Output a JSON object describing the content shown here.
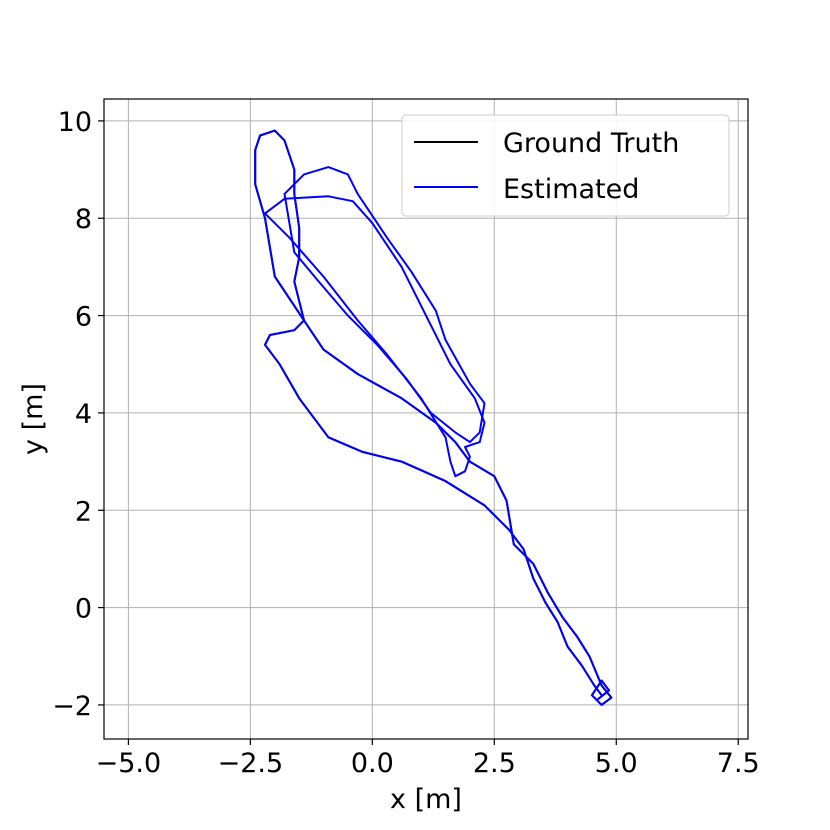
{
  "chart_data": {
    "type": "line",
    "title": "",
    "xlabel": "x [m]",
    "ylabel": "y [m]",
    "xlim": [
      -5.5,
      7.7
    ],
    "ylim": [
      -2.7,
      10.45
    ],
    "x_ticks": [
      -5.0,
      -2.5,
      0.0,
      2.5,
      5.0,
      7.5
    ],
    "x_tick_labels": [
      "−5.0",
      "−2.5",
      "0.0",
      "2.5",
      "5.0",
      "7.5"
    ],
    "y_ticks": [
      -2,
      0,
      2,
      4,
      6,
      8,
      10
    ],
    "y_tick_labels": [
      "−2",
      "0",
      "2",
      "4",
      "6",
      "8",
      "10"
    ],
    "grid": true,
    "legend_position": "top-right",
    "series": [
      {
        "name": "Ground Truth",
        "color": "#000000",
        "points": [
          [
            4.7,
            -1.8
          ],
          [
            4.55,
            -1.6
          ],
          [
            4.3,
            -1.2
          ],
          [
            4.0,
            -0.8
          ],
          [
            3.8,
            -0.3
          ],
          [
            3.55,
            0.1
          ],
          [
            3.3,
            0.6
          ],
          [
            3.1,
            1.2
          ],
          [
            2.8,
            1.6
          ],
          [
            2.3,
            2.1
          ],
          [
            1.5,
            2.6
          ],
          [
            0.6,
            3.0
          ],
          [
            -0.2,
            3.2
          ],
          [
            -0.9,
            3.5
          ],
          [
            -1.5,
            4.3
          ],
          [
            -1.9,
            5.0
          ],
          [
            -2.2,
            5.4
          ],
          [
            -2.1,
            5.6
          ],
          [
            -1.6,
            5.7
          ],
          [
            -1.4,
            5.9
          ],
          [
            -1.6,
            6.2
          ],
          [
            -2.0,
            6.8
          ],
          [
            -2.1,
            7.4
          ],
          [
            -2.2,
            8.0
          ],
          [
            -2.4,
            8.7
          ],
          [
            -2.4,
            9.4
          ],
          [
            -2.3,
            9.7
          ],
          [
            -2.0,
            9.8
          ],
          [
            -1.8,
            9.6
          ],
          [
            -1.6,
            9.0
          ],
          [
            -1.6,
            8.5
          ],
          [
            -1.5,
            7.8
          ],
          [
            -1.5,
            7.2
          ],
          [
            -1.6,
            6.7
          ],
          [
            -1.4,
            5.9
          ],
          [
            -1.0,
            5.3
          ],
          [
            -0.3,
            4.8
          ],
          [
            0.6,
            4.3
          ],
          [
            1.3,
            3.8
          ],
          [
            1.7,
            3.4
          ],
          [
            2.0,
            3.0
          ],
          [
            2.5,
            2.7
          ],
          [
            2.75,
            2.2
          ],
          [
            2.9,
            1.3
          ],
          [
            3.3,
            0.9
          ],
          [
            3.6,
            0.3
          ],
          [
            3.9,
            -0.2
          ],
          [
            4.2,
            -0.6
          ],
          [
            4.45,
            -1.0
          ],
          [
            4.7,
            -1.6
          ],
          [
            4.9,
            -1.85
          ],
          [
            4.7,
            -2.0
          ],
          [
            4.5,
            -1.8
          ],
          [
            4.7,
            -1.5
          ],
          [
            4.85,
            -1.7
          ],
          [
            4.6,
            -1.9
          ]
        ]
      },
      {
        "name": "Estimated",
        "color": "#0000ff",
        "points": [
          [
            4.7,
            -1.8
          ],
          [
            4.55,
            -1.6
          ],
          [
            4.3,
            -1.2
          ],
          [
            4.0,
            -0.8
          ],
          [
            3.8,
            -0.3
          ],
          [
            3.55,
            0.1
          ],
          [
            3.3,
            0.6
          ],
          [
            3.1,
            1.2
          ],
          [
            2.8,
            1.6
          ],
          [
            2.3,
            2.1
          ],
          [
            1.5,
            2.6
          ],
          [
            0.6,
            3.0
          ],
          [
            -0.2,
            3.2
          ],
          [
            -0.9,
            3.5
          ],
          [
            -1.5,
            4.3
          ],
          [
            -1.9,
            5.0
          ],
          [
            -2.2,
            5.4
          ],
          [
            -2.1,
            5.6
          ],
          [
            -1.6,
            5.7
          ],
          [
            -1.4,
            5.9
          ],
          [
            -1.6,
            6.2
          ],
          [
            -2.0,
            6.8
          ],
          [
            -2.1,
            7.4
          ],
          [
            -2.2,
            8.0
          ],
          [
            -2.4,
            8.7
          ],
          [
            -2.4,
            9.4
          ],
          [
            -2.3,
            9.7
          ],
          [
            -2.0,
            9.8
          ],
          [
            -1.8,
            9.6
          ],
          [
            -1.6,
            9.0
          ],
          [
            -1.6,
            8.5
          ],
          [
            -1.5,
            7.8
          ],
          [
            -1.5,
            7.2
          ],
          [
            -1.6,
            6.7
          ],
          [
            -1.4,
            5.9
          ],
          [
            -1.0,
            5.3
          ],
          [
            -0.3,
            4.8
          ],
          [
            0.6,
            4.3
          ],
          [
            1.3,
            3.8
          ],
          [
            1.7,
            3.4
          ],
          [
            2.0,
            3.0
          ],
          [
            2.5,
            2.7
          ],
          [
            2.75,
            2.2
          ],
          [
            2.9,
            1.3
          ],
          [
            3.3,
            0.9
          ],
          [
            3.6,
            0.3
          ],
          [
            3.9,
            -0.2
          ],
          [
            4.2,
            -0.6
          ],
          [
            4.45,
            -1.0
          ],
          [
            4.7,
            -1.6
          ],
          [
            4.9,
            -1.85
          ],
          [
            4.7,
            -2.0
          ],
          [
            4.5,
            -1.8
          ],
          [
            4.7,
            -1.5
          ],
          [
            4.85,
            -1.7
          ],
          [
            4.6,
            -1.9
          ]
        ],
        "extra_segments": [
          [
            [
              -2.2,
              8.1
            ],
            [
              -1.8,
              8.4
            ],
            [
              -0.9,
              8.45
            ],
            [
              -0.4,
              8.35
            ],
            [
              0.0,
              7.9
            ],
            [
              0.6,
              7.0
            ],
            [
              1.1,
              6.0
            ],
            [
              1.6,
              5.0
            ],
            [
              2.1,
              4.3
            ],
            [
              2.3,
              3.8
            ],
            [
              2.2,
              3.4
            ],
            [
              1.9,
              3.3
            ],
            [
              2.0,
              3.1
            ],
            [
              1.9,
              2.8
            ],
            [
              1.7,
              2.7
            ],
            [
              1.6,
              3.0
            ],
            [
              1.5,
              3.5
            ],
            [
              1.0,
              4.3
            ],
            [
              0.3,
              5.2
            ],
            [
              -0.3,
              5.9
            ],
            [
              -1.0,
              6.8
            ],
            [
              -1.7,
              7.6
            ],
            [
              -2.2,
              8.1
            ]
          ],
          [
            [
              -1.8,
              8.5
            ],
            [
              -1.4,
              8.9
            ],
            [
              -0.9,
              9.05
            ],
            [
              -0.5,
              8.9
            ],
            [
              -0.3,
              8.5
            ],
            [
              0.3,
              7.6
            ],
            [
              0.8,
              6.9
            ],
            [
              1.3,
              6.1
            ],
            [
              1.5,
              5.5
            ],
            [
              2.0,
              4.6
            ],
            [
              2.3,
              4.2
            ],
            [
              2.2,
              3.6
            ],
            [
              2.0,
              3.4
            ],
            [
              1.7,
              3.6
            ],
            [
              1.2,
              4.0
            ],
            [
              0.7,
              4.7
            ],
            [
              0.1,
              5.4
            ],
            [
              -0.5,
              6.0
            ],
            [
              -1.1,
              6.7
            ],
            [
              -1.6,
              7.3
            ],
            [
              -1.7,
              7.9
            ],
            [
              -1.8,
              8.5
            ]
          ]
        ]
      }
    ]
  }
}
